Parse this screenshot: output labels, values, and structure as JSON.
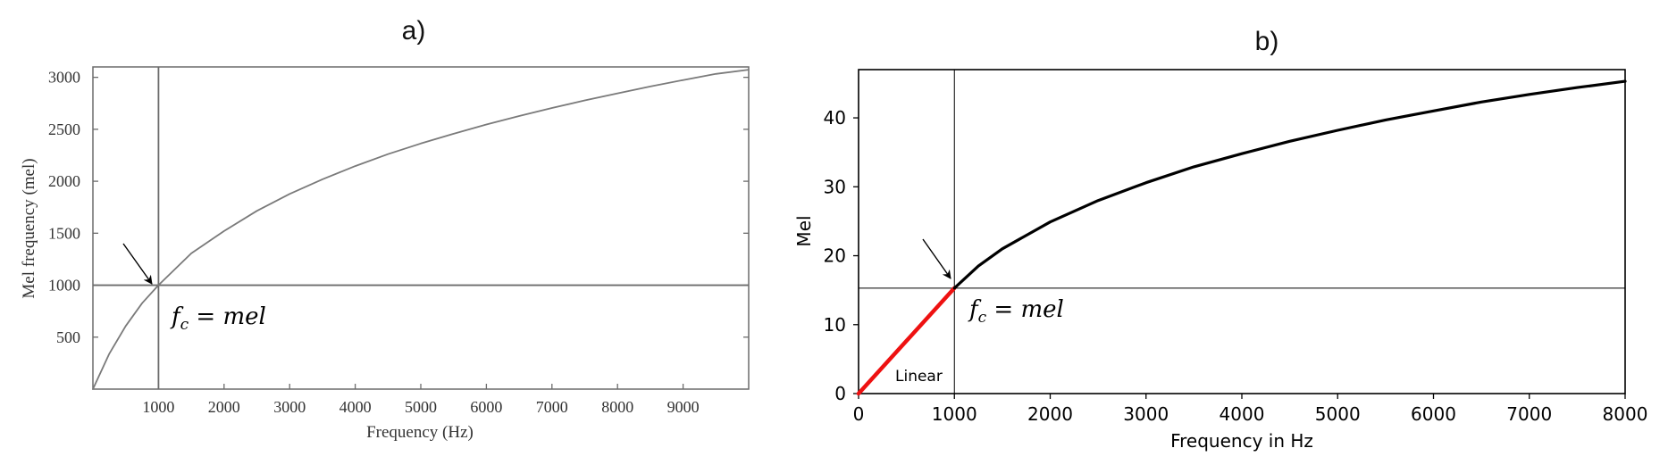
{
  "chart_data": [
    {
      "panel": "a)",
      "type": "line",
      "xlabel": "Frequency (Hz)",
      "ylabel": "Mel frequency (mel)",
      "xlim": [
        0,
        10000
      ],
      "ylim": [
        0,
        3100
      ],
      "xticks": [
        1000,
        2000,
        3000,
        4000,
        5000,
        6000,
        7000,
        8000,
        9000
      ],
      "yticks": [
        500,
        1000,
        1500,
        2000,
        2500,
        3000
      ],
      "series": [
        {
          "x": [
            0,
            250,
            500,
            750,
            1000,
            1500,
            2000,
            2500,
            3000,
            3500,
            4000,
            4500,
            5000,
            5500,
            6000,
            6500,
            7000,
            7500,
            8000,
            8500,
            9000,
            9500,
            10000
          ],
          "values": [
            0,
            340,
            607,
            827,
            1000,
            1306,
            1521,
            1715,
            1878,
            2019,
            2146,
            2261,
            2363,
            2457,
            2546,
            2628,
            2705,
            2778,
            2846,
            2912,
            2974,
            3033,
            3073
          ],
          "color": "#7a7a7a"
        }
      ],
      "reference_lines": {
        "vertical_x": 1000,
        "horizontal_y": 1000
      },
      "annotations": [
        {
          "text_base": "f",
          "text_sub": "c",
          "text_rest": " = ",
          "text_tail": "mel",
          "x": 1000,
          "y": 1000
        }
      ],
      "grid": false
    },
    {
      "panel": "b)",
      "type": "line",
      "xlabel": "Frequency in Hz",
      "ylabel": "Mel",
      "xlim": [
        0,
        8000
      ],
      "ylim": [
        0,
        47
      ],
      "xticks": [
        0,
        1000,
        2000,
        3000,
        4000,
        5000,
        6000,
        7000,
        8000
      ],
      "yticks": [
        0,
        10,
        20,
        30,
        40
      ],
      "series": [
        {
          "x": [
            0,
            1000
          ],
          "values": [
            0,
            15.3
          ],
          "color": "#ee1111"
        },
        {
          "x": [
            1000,
            1250,
            1500,
            2000,
            2500,
            3000,
            3500,
            4000,
            4500,
            5000,
            5500,
            6000,
            6500,
            7000,
            7500,
            8000
          ],
          "values": [
            15.3,
            18.5,
            21.0,
            24.9,
            28.0,
            30.6,
            32.9,
            34.8,
            36.6,
            38.2,
            39.7,
            41.0,
            42.3,
            43.4,
            44.4,
            45.3
          ],
          "color": "#000000"
        }
      ],
      "reference_lines": {
        "vertical_x": 1000,
        "horizontal_y": 15.3
      },
      "annotations": [
        {
          "text_base": "f",
          "text_sub": "c",
          "text_rest": " = ",
          "text_tail": "mel",
          "x": 1000,
          "y": 15.3
        },
        {
          "text": "Linear"
        }
      ],
      "grid": false
    }
  ]
}
